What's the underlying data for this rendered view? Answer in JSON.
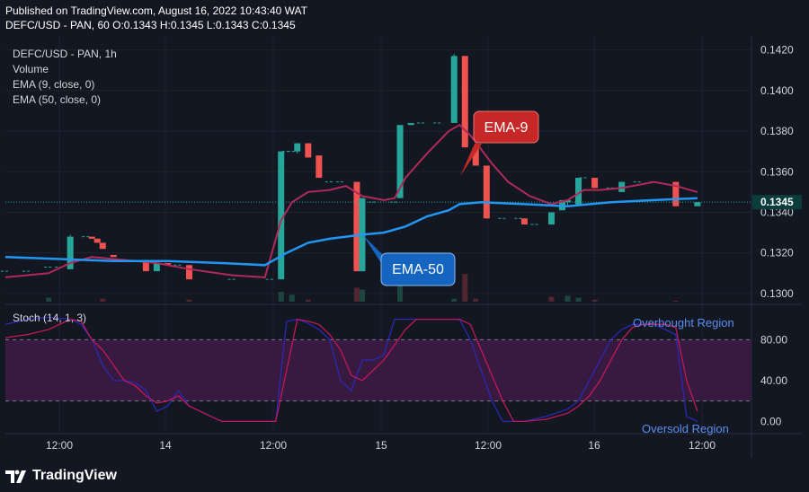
{
  "header": {
    "published": "Published on TradingView.com, August 16, 2022 10:43:40 WAT",
    "symbol_line": "DEFC/USD - PAN, 60  O:0.1343  H:0.1345  L:0.1343  C:0.1345"
  },
  "legend": {
    "title": "DEFC/USD - PAN, 1h",
    "volume": "Volume",
    "ema9": "EMA (9, close, 0)",
    "ema50": "EMA (50, close, 0)"
  },
  "stoch_legend": "Stoch (14, 1, 3)",
  "annotations": {
    "ema9_label": "EMA-9",
    "ema50_label": "EMA-50",
    "overbought": "Overbought Region",
    "oversold": "Oversold Region"
  },
  "branding": {
    "name": "TradingView"
  },
  "colors": {
    "background": "#131722",
    "grid": "#1e222d",
    "up": "#26a69a",
    "down": "#ef5350",
    "ema9": "#b02a58",
    "ema50": "#2196f3",
    "stoch_k": "#2929b3",
    "stoch_d": "#c2185b",
    "stoch_band": "#3d1b44",
    "ema9_box": "#c62828",
    "ema50_box": "#1565c0",
    "last_price_box": "#0b3d3d"
  },
  "chart_data": [
    {
      "type": "candlestick",
      "title": "DEFC/USD - PAN, 1h",
      "ylim": [
        0.1296,
        0.1426
      ],
      "y_ticks": [
        "0.1300",
        "0.1320",
        "0.1340",
        "0.1360",
        "0.1380",
        "0.1400",
        "0.1420"
      ],
      "y_tick_values": [
        0.13,
        0.132,
        0.134,
        0.136,
        0.138,
        0.14,
        0.142
      ],
      "x_ticks": [
        "12:00",
        "14",
        "12:00",
        "15",
        "12:00",
        "16",
        "12:00"
      ],
      "last_price": "0.1345",
      "last_price_value": 0.1345,
      "candles": [
        {
          "t": 0,
          "o": 0.1311,
          "h": 0.1311,
          "l": 0.1311,
          "c": 0.1311
        },
        {
          "t": 4,
          "o": 0.1311,
          "h": 0.1311,
          "l": 0.1311,
          "c": 0.1311
        },
        {
          "t": 8,
          "o": 0.1313,
          "h": 0.1315,
          "l": 0.1311,
          "c": 0.1313
        },
        {
          "t": 10,
          "o": 0.1313,
          "h": 0.1313,
          "l": 0.1313,
          "c": 0.1313
        },
        {
          "t": 12,
          "o": 0.1312,
          "h": 0.1329,
          "l": 0.1312,
          "c": 0.1328
        },
        {
          "t": 15,
          "o": 0.1328,
          "h": 0.1328,
          "l": 0.1328,
          "c": 0.1328
        },
        {
          "t": 16,
          "o": 0.1328,
          "h": 0.1328,
          "l": 0.1327,
          "c": 0.1327
        },
        {
          "t": 17,
          "o": 0.1327,
          "h": 0.1327,
          "l": 0.1325,
          "c": 0.1325
        },
        {
          "t": 18,
          "o": 0.1325,
          "h": 0.1325,
          "l": 0.1322,
          "c": 0.1322
        },
        {
          "t": 20,
          "o": 0.1319,
          "h": 0.1319,
          "l": 0.1318,
          "c": 0.1318
        },
        {
          "t": 24,
          "o": 0.1316,
          "h": 0.1317,
          "l": 0.1316,
          "c": 0.1316
        },
        {
          "t": 26,
          "o": 0.1316,
          "h": 0.1316,
          "l": 0.1311,
          "c": 0.1311
        },
        {
          "t": 28,
          "o": 0.1311,
          "h": 0.1316,
          "l": 0.1311,
          "c": 0.1315
        },
        {
          "t": 30,
          "o": 0.1315,
          "h": 0.1315,
          "l": 0.1314,
          "c": 0.1314
        },
        {
          "t": 32,
          "o": 0.1314,
          "h": 0.1315,
          "l": 0.1314,
          "c": 0.1314
        },
        {
          "t": 34,
          "o": 0.1314,
          "h": 0.1314,
          "l": 0.1307,
          "c": 0.1307
        },
        {
          "t": 42,
          "o": 0.1307,
          "h": 0.1307,
          "l": 0.1307,
          "c": 0.1307
        },
        {
          "t": 49,
          "o": 0.1307,
          "h": 0.1307,
          "l": 0.1307,
          "c": 0.1307
        },
        {
          "t": 51,
          "o": 0.1307,
          "h": 0.137,
          "l": 0.1307,
          "c": 0.137
        },
        {
          "t": 52,
          "o": 0.137,
          "h": 0.137,
          "l": 0.137,
          "c": 0.137
        },
        {
          "t": 53,
          "o": 0.137,
          "h": 0.1371,
          "l": 0.137,
          "c": 0.137
        },
        {
          "t": 54,
          "o": 0.137,
          "h": 0.1374,
          "l": 0.1369,
          "c": 0.1374
        },
        {
          "t": 56,
          "o": 0.1374,
          "h": 0.1374,
          "l": 0.1367,
          "c": 0.1367
        },
        {
          "t": 58,
          "o": 0.1368,
          "h": 0.1368,
          "l": 0.1357,
          "c": 0.1357
        },
        {
          "t": 60,
          "o": 0.1355,
          "h": 0.1355,
          "l": 0.1355,
          "c": 0.1355
        },
        {
          "t": 62,
          "o": 0.1355,
          "h": 0.1355,
          "l": 0.1355,
          "c": 0.1355
        },
        {
          "t": 65,
          "o": 0.1355,
          "h": 0.1355,
          "l": 0.1311,
          "c": 0.1311
        },
        {
          "t": 66,
          "o": 0.1311,
          "h": 0.1347,
          "l": 0.1311,
          "c": 0.1347
        },
        {
          "t": 68,
          "o": 0.1345,
          "h": 0.1345,
          "l": 0.1345,
          "c": 0.1345
        },
        {
          "t": 72,
          "o": 0.1345,
          "h": 0.1345,
          "l": 0.1345,
          "c": 0.1345
        },
        {
          "t": 73,
          "o": 0.1347,
          "h": 0.1383,
          "l": 0.1347,
          "c": 0.1383
        },
        {
          "t": 75,
          "o": 0.1383,
          "h": 0.1384,
          "l": 0.1383,
          "c": 0.1384
        },
        {
          "t": 77,
          "o": 0.1384,
          "h": 0.1384,
          "l": 0.1384,
          "c": 0.1384
        },
        {
          "t": 80,
          "o": 0.1384,
          "h": 0.1384,
          "l": 0.1384,
          "c": 0.1384
        },
        {
          "t": 83,
          "o": 0.1384,
          "h": 0.1418,
          "l": 0.1384,
          "c": 0.1417
        },
        {
          "t": 85,
          "o": 0.1417,
          "h": 0.1417,
          "l": 0.1372,
          "c": 0.1372
        },
        {
          "t": 87,
          "o": 0.1372,
          "h": 0.1372,
          "l": 0.1363,
          "c": 0.1363
        },
        {
          "t": 89,
          "o": 0.1363,
          "h": 0.1363,
          "l": 0.1337,
          "c": 0.1337
        },
        {
          "t": 92,
          "o": 0.1337,
          "h": 0.1337,
          "l": 0.1337,
          "c": 0.1337
        },
        {
          "t": 95,
          "o": 0.1337,
          "h": 0.1337,
          "l": 0.1337,
          "c": 0.1337
        },
        {
          "t": 96,
          "o": 0.1337,
          "h": 0.1337,
          "l": 0.1334,
          "c": 0.1334
        },
        {
          "t": 98,
          "o": 0.1334,
          "h": 0.1334,
          "l": 0.1334,
          "c": 0.1334
        },
        {
          "t": 101,
          "o": 0.1334,
          "h": 0.134,
          "l": 0.1334,
          "c": 0.134
        },
        {
          "t": 103,
          "o": 0.1341,
          "h": 0.1346,
          "l": 0.1341,
          "c": 0.1346
        },
        {
          "t": 104,
          "o": 0.1345,
          "h": 0.1346,
          "l": 0.1343,
          "c": 0.1346
        },
        {
          "t": 106,
          "o": 0.1344,
          "h": 0.1357,
          "l": 0.1344,
          "c": 0.1357
        },
        {
          "t": 107,
          "o": 0.1357,
          "h": 0.1357,
          "l": 0.1357,
          "c": 0.1357
        },
        {
          "t": 109,
          "o": 0.1357,
          "h": 0.1357,
          "l": 0.1352,
          "c": 0.1352
        },
        {
          "t": 112,
          "o": 0.1352,
          "h": 0.1352,
          "l": 0.1352,
          "c": 0.1352
        },
        {
          "t": 114,
          "o": 0.135,
          "h": 0.1355,
          "l": 0.135,
          "c": 0.1355
        },
        {
          "t": 117,
          "o": 0.1355,
          "h": 0.1355,
          "l": 0.1355,
          "c": 0.1355
        },
        {
          "t": 120,
          "o": 0.1355,
          "h": 0.1355,
          "l": 0.1355,
          "c": 0.1355
        },
        {
          "t": 124,
          "o": 0.1355,
          "h": 0.1355,
          "l": 0.1343,
          "c": 0.1343
        },
        {
          "t": 128,
          "o": 0.1343,
          "h": 0.1345,
          "l": 0.1343,
          "c": 0.1345
        }
      ],
      "series": [
        {
          "name": "EMA (9, close, 0)",
          "x": [
            0,
            8,
            12,
            16,
            20,
            24,
            28,
            34,
            42,
            48,
            51,
            53,
            56,
            60,
            63,
            66,
            70,
            72,
            74,
            78,
            82,
            84,
            86,
            88,
            90,
            93,
            97,
            101,
            104,
            107,
            110,
            114,
            120,
            124,
            128
          ],
          "y": [
            0.1308,
            0.131,
            0.1315,
            0.1318,
            0.1317,
            0.1316,
            0.1315,
            0.1312,
            0.1309,
            0.1308,
            0.1336,
            0.1345,
            0.135,
            0.1351,
            0.1353,
            0.1348,
            0.1346,
            0.1347,
            0.1357,
            0.1369,
            0.138,
            0.1383,
            0.1378,
            0.1371,
            0.1364,
            0.1355,
            0.1348,
            0.1344,
            0.1346,
            0.1351,
            0.1351,
            0.1352,
            0.1355,
            0.1353,
            0.135
          ]
        },
        {
          "name": "EMA (50, close, 0)",
          "x": [
            0,
            10,
            20,
            30,
            40,
            48,
            52,
            56,
            60,
            66,
            70,
            74,
            78,
            82,
            84,
            88,
            96,
            104,
            112,
            120,
            128
          ],
          "y": [
            0.1318,
            0.1317,
            0.1316,
            0.1316,
            0.1315,
            0.1314,
            0.132,
            0.1325,
            0.1327,
            0.1329,
            0.133,
            0.1333,
            0.1338,
            0.1341,
            0.1344,
            0.1345,
            0.1344,
            0.1343,
            0.1345,
            0.1346,
            0.1347
          ]
        }
      ]
    },
    {
      "type": "bar",
      "title": "Volume",
      "values_relative": [
        {
          "t": 8,
          "v": 0.2,
          "up": true
        },
        {
          "t": 18,
          "v": 0.15,
          "up": false
        },
        {
          "t": 34,
          "v": 0.1,
          "up": false
        },
        {
          "t": 51,
          "v": 0.5,
          "up": true
        },
        {
          "t": 53,
          "v": 0.35,
          "up": true
        },
        {
          "t": 56,
          "v": 0.1,
          "up": false
        },
        {
          "t": 65,
          "v": 0.7,
          "up": false
        },
        {
          "t": 66,
          "v": 0.6,
          "up": true
        },
        {
          "t": 73,
          "v": 1.2,
          "up": true
        },
        {
          "t": 83,
          "v": 0.15,
          "up": true
        },
        {
          "t": 85,
          "v": 1.4,
          "up": false
        },
        {
          "t": 87,
          "v": 0.15,
          "up": false
        },
        {
          "t": 101,
          "v": 0.25,
          "up": false
        },
        {
          "t": 104,
          "v": 0.3,
          "up": true
        },
        {
          "t": 106,
          "v": 0.2,
          "up": true
        },
        {
          "t": 109,
          "v": 0.1,
          "up": false
        },
        {
          "t": 124,
          "v": 0.05,
          "up": false
        }
      ]
    },
    {
      "type": "line",
      "title": "Stoch (14, 1, 3)",
      "ylim": [
        -12,
        112
      ],
      "y_ticks": [
        "0.00",
        "40.00",
        "80.00"
      ],
      "y_tick_values": [
        0,
        40,
        80
      ],
      "bands": [
        20,
        80
      ],
      "series": [
        {
          "name": "%K",
          "x": [
            0,
            4,
            8,
            12,
            14,
            16,
            18,
            20,
            22,
            24,
            26,
            28,
            30,
            32,
            34,
            40,
            50,
            52,
            54,
            56,
            58,
            60,
            62,
            64,
            66,
            68,
            70,
            72,
            74,
            76,
            78,
            82,
            84,
            86,
            88,
            90,
            92,
            94,
            96,
            100,
            104,
            106,
            108,
            110,
            112,
            114,
            116,
            118,
            120,
            122,
            124,
            126,
            128
          ],
          "y": [
            95,
            100,
            102,
            100,
            95,
            80,
            55,
            40,
            40,
            38,
            30,
            10,
            15,
            30,
            15,
            0,
            0,
            98,
            100,
            96,
            90,
            80,
            40,
            30,
            60,
            60,
            65,
            100,
            100,
            100,
            100,
            100,
            100,
            80,
            50,
            20,
            0,
            0,
            0,
            5,
            12,
            20,
            40,
            60,
            80,
            90,
            95,
            95,
            95,
            90,
            85,
            5,
            0
          ]
        },
        {
          "name": "%D",
          "x": [
            0,
            4,
            8,
            12,
            14,
            16,
            18,
            20,
            22,
            24,
            26,
            28,
            30,
            32,
            34,
            40,
            50,
            52,
            54,
            56,
            58,
            60,
            62,
            64,
            66,
            68,
            70,
            72,
            74,
            76,
            78,
            82,
            84,
            86,
            88,
            90,
            92,
            94,
            96,
            100,
            104,
            106,
            108,
            110,
            112,
            114,
            116,
            118,
            120,
            122,
            124,
            126,
            128
          ],
          "y": [
            82,
            85,
            90,
            100,
            98,
            80,
            70,
            55,
            40,
            35,
            25,
            18,
            20,
            25,
            15,
            0,
            0,
            50,
            100,
            98,
            95,
            85,
            70,
            45,
            40,
            50,
            60,
            75,
            90,
            100,
            100,
            100,
            100,
            95,
            70,
            45,
            20,
            0,
            0,
            2,
            8,
            15,
            25,
            40,
            60,
            80,
            92,
            95,
            95,
            95,
            92,
            40,
            10
          ]
        }
      ]
    }
  ]
}
